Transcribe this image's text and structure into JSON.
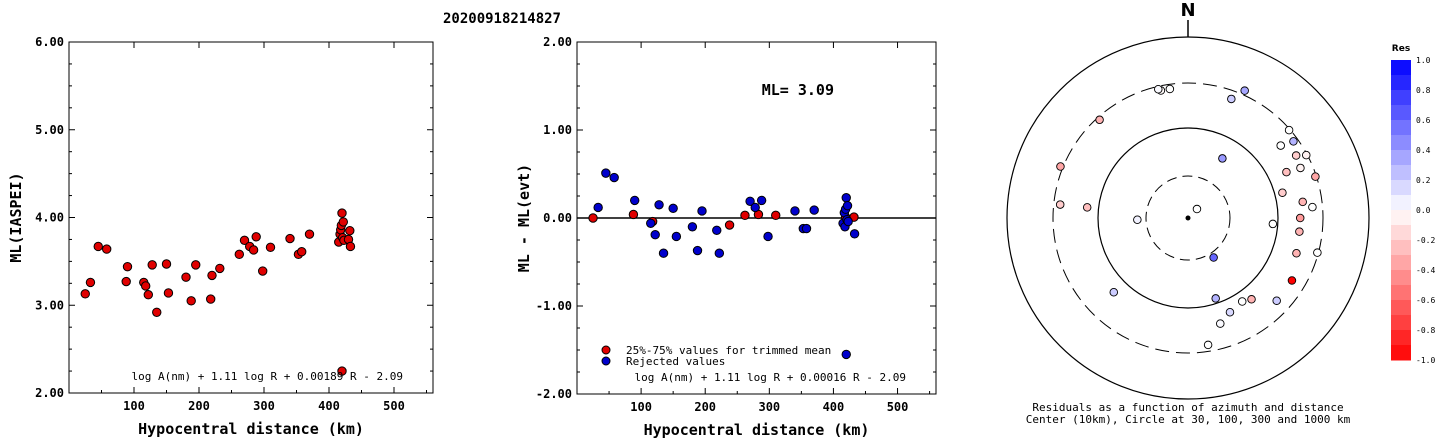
{
  "title": "20200918214827",
  "chart_data": [
    {
      "type": "scatter",
      "xlabel": "Hypocentral distance (km)",
      "ylabel": "ML(IASPEI)",
      "xlim": [
        0,
        560
      ],
      "ylim": [
        2.0,
        6.0
      ],
      "xticks": [
        "100",
        "200",
        "300",
        "400",
        "500"
      ],
      "yticks": [
        "2.00",
        "3.00",
        "4.00",
        "5.00",
        "6.00"
      ],
      "formula": "log A(nm) + 1.11 log R + 0.00189 R - 2.09",
      "series": [
        {
          "color": "#e00000",
          "points": [
            [
              25,
              3.13
            ],
            [
              33,
              3.26
            ],
            [
              45,
              3.67
            ],
            [
              58,
              3.64
            ],
            [
              88,
              3.27
            ],
            [
              90,
              3.44
            ],
            [
              115,
              3.26
            ],
            [
              118,
              3.22
            ],
            [
              122,
              3.12
            ],
            [
              128,
              3.46
            ],
            [
              135,
              2.92
            ],
            [
              150,
              3.47
            ],
            [
              153,
              3.14
            ],
            [
              180,
              3.32
            ],
            [
              188,
              3.05
            ],
            [
              195,
              3.46
            ],
            [
              218,
              3.07
            ],
            [
              220,
              3.34
            ],
            [
              232,
              3.42
            ],
            [
              262,
              3.58
            ],
            [
              270,
              3.74
            ],
            [
              278,
              3.67
            ],
            [
              284,
              3.63
            ],
            [
              288,
              3.78
            ],
            [
              298,
              3.39
            ],
            [
              310,
              3.66
            ],
            [
              340,
              3.76
            ],
            [
              353,
              3.58
            ],
            [
              358,
              3.61
            ],
            [
              370,
              3.81
            ],
            [
              415,
              3.72
            ],
            [
              417,
              3.81
            ],
            [
              418,
              3.86
            ],
            [
              419,
              3.91
            ],
            [
              420,
              4.05
            ],
            [
              421,
              3.77
            ],
            [
              422,
              3.95
            ],
            [
              423,
              3.74
            ],
            [
              430,
              3.75
            ],
            [
              432,
              3.85
            ],
            [
              433,
              3.67
            ],
            [
              420,
              2.25
            ]
          ]
        }
      ]
    },
    {
      "type": "scatter",
      "xlabel": "Hypocentral distance (km)",
      "ylabel": "ML - ML(evt)",
      "xlim": [
        0,
        560
      ],
      "ylim": [
        -2.0,
        2.0
      ],
      "xticks": [
        "100",
        "200",
        "300",
        "400",
        "500"
      ],
      "yticks": [
        "-2.00",
        "-1.00",
        "0.00",
        "1.00",
        "2.00"
      ],
      "annotation": "ML= 3.09",
      "formula": "log A(nm) + 1.11 log R + 0.00016 R - 2.09",
      "legend": [
        {
          "label": "25%-75% values for trimmed mean",
          "color": "#e00000"
        },
        {
          "label": "Rejected values",
          "color": "#0000cc"
        }
      ],
      "series": [
        {
          "name": "25%-75% values for trimmed mean",
          "color": "#e00000",
          "points": [
            [
              25,
              0.0
            ],
            [
              88,
              0.04
            ],
            [
              118,
              -0.04
            ],
            [
              238,
              -0.08
            ],
            [
              262,
              0.03
            ],
            [
              283,
              0.04
            ],
            [
              310,
              0.03
            ],
            [
              419,
              0.01
            ],
            [
              432,
              0.01
            ]
          ]
        },
        {
          "name": "Rejected values",
          "color": "#0000cc",
          "points": [
            [
              33,
              0.12
            ],
            [
              45,
              0.51
            ],
            [
              58,
              0.46
            ],
            [
              90,
              0.2
            ],
            [
              115,
              -0.06
            ],
            [
              122,
              -0.19
            ],
            [
              128,
              0.15
            ],
            [
              135,
              -0.4
            ],
            [
              150,
              0.11
            ],
            [
              155,
              -0.21
            ],
            [
              180,
              -0.1
            ],
            [
              188,
              -0.37
            ],
            [
              195,
              0.08
            ],
            [
              218,
              -0.14
            ],
            [
              222,
              -0.4
            ],
            [
              270,
              0.19
            ],
            [
              278,
              0.12
            ],
            [
              288,
              0.2
            ],
            [
              298,
              -0.21
            ],
            [
              340,
              0.08
            ],
            [
              353,
              -0.12
            ],
            [
              358,
              -0.12
            ],
            [
              370,
              0.09
            ],
            [
              415,
              -0.06
            ],
            [
              417,
              0.06
            ],
            [
              418,
              -0.1
            ],
            [
              419,
              0.1
            ],
            [
              420,
              0.23
            ],
            [
              421,
              -0.02
            ],
            [
              422,
              0.14
            ],
            [
              423,
              -0.04
            ],
            [
              433,
              -0.18
            ],
            [
              420,
              -1.55
            ]
          ]
        }
      ]
    },
    {
      "type": "polar-residuals",
      "north_label": "N",
      "caption_line1": "Residuals as a function of azimuth and distance",
      "caption_line2": "Center (10km), Circle at 30, 100, 300 and 1000 km",
      "colorbar_title": "Res",
      "colorbar_ticks": [
        "1.0",
        "0.8",
        "0.6",
        "0.4",
        "0.2",
        "0.0",
        "-0.2",
        "-0.4",
        "-0.6",
        "-0.8",
        "-1.0"
      ],
      "colorbar_range": [
        -1.0,
        1.0
      ],
      "points": [
        {
          "azimuth": 348,
          "rradius": 0.72,
          "res": -0.02
        },
        {
          "azimuth": 347,
          "rradius": 0.73,
          "res": 0.02
        },
        {
          "azimuth": 352,
          "rradius": 0.72,
          "res": 0.0
        },
        {
          "azimuth": 24,
          "rradius": 0.77,
          "res": 0.35
        },
        {
          "azimuth": 20,
          "rradius": 0.7,
          "res": 0.2
        },
        {
          "azimuth": 318,
          "rradius": 0.73,
          "res": -0.3
        },
        {
          "azimuth": 292,
          "rradius": 0.76,
          "res": -0.35
        },
        {
          "azimuth": 276,
          "rradius": 0.71,
          "res": -0.2
        },
        {
          "azimuth": 276,
          "rradius": 0.56,
          "res": -0.25
        },
        {
          "azimuth": 268,
          "rradius": 0.28,
          "res": 0.05
        },
        {
          "azimuth": 49,
          "rradius": 0.74,
          "res": 0.0
        },
        {
          "azimuth": 54,
          "rradius": 0.72,
          "res": 0.3
        },
        {
          "azimuth": 52,
          "rradius": 0.65,
          "res": 0.0
        },
        {
          "azimuth": 62,
          "rradius": 0.74,
          "res": -0.05
        },
        {
          "azimuth": 60,
          "rradius": 0.69,
          "res": -0.2
        },
        {
          "azimuth": 66,
          "rradius": 0.68,
          "res": -0.05
        },
        {
          "azimuth": 65,
          "rradius": 0.6,
          "res": -0.25
        },
        {
          "azimuth": 72,
          "rradius": 0.74,
          "res": -0.35
        },
        {
          "azimuth": 75,
          "rradius": 0.54,
          "res": -0.2
        },
        {
          "azimuth": 82,
          "rradius": 0.64,
          "res": -0.3
        },
        {
          "azimuth": 85,
          "rradius": 0.69,
          "res": 0.0
        },
        {
          "azimuth": 90,
          "rradius": 0.62,
          "res": -0.4
        },
        {
          "azimuth": 97,
          "rradius": 0.62,
          "res": -0.3
        },
        {
          "azimuth": 94,
          "rradius": 0.47,
          "res": 0.0
        },
        {
          "azimuth": 105,
          "rradius": 0.74,
          "res": 0.0
        },
        {
          "azimuth": 108,
          "rradius": 0.63,
          "res": -0.3
        },
        {
          "azimuth": 121,
          "rradius": 0.67,
          "res": -1.0
        },
        {
          "azimuth": 133,
          "rradius": 0.67,
          "res": 0.2
        },
        {
          "azimuth": 142,
          "rradius": 0.57,
          "res": -0.3
        },
        {
          "azimuth": 147,
          "rradius": 0.55,
          "res": 0.0
        },
        {
          "azimuth": 156,
          "rradius": 0.57,
          "res": 0.15
        },
        {
          "azimuth": 163,
          "rradius": 0.61,
          "res": 0.02
        },
        {
          "azimuth": 171,
          "rradius": 0.71,
          "res": 0.0
        },
        {
          "azimuth": 161,
          "rradius": 0.47,
          "res": 0.3
        },
        {
          "azimuth": 147,
          "rradius": 0.26,
          "res": 0.6
        },
        {
          "azimuth": 225,
          "rradius": 0.58,
          "res": 0.2
        },
        {
          "azimuth": 30,
          "rradius": 0.38,
          "res": 0.4
        },
        {
          "azimuth": 45,
          "rradius": 0.07,
          "res": 0.0
        }
      ]
    }
  ]
}
